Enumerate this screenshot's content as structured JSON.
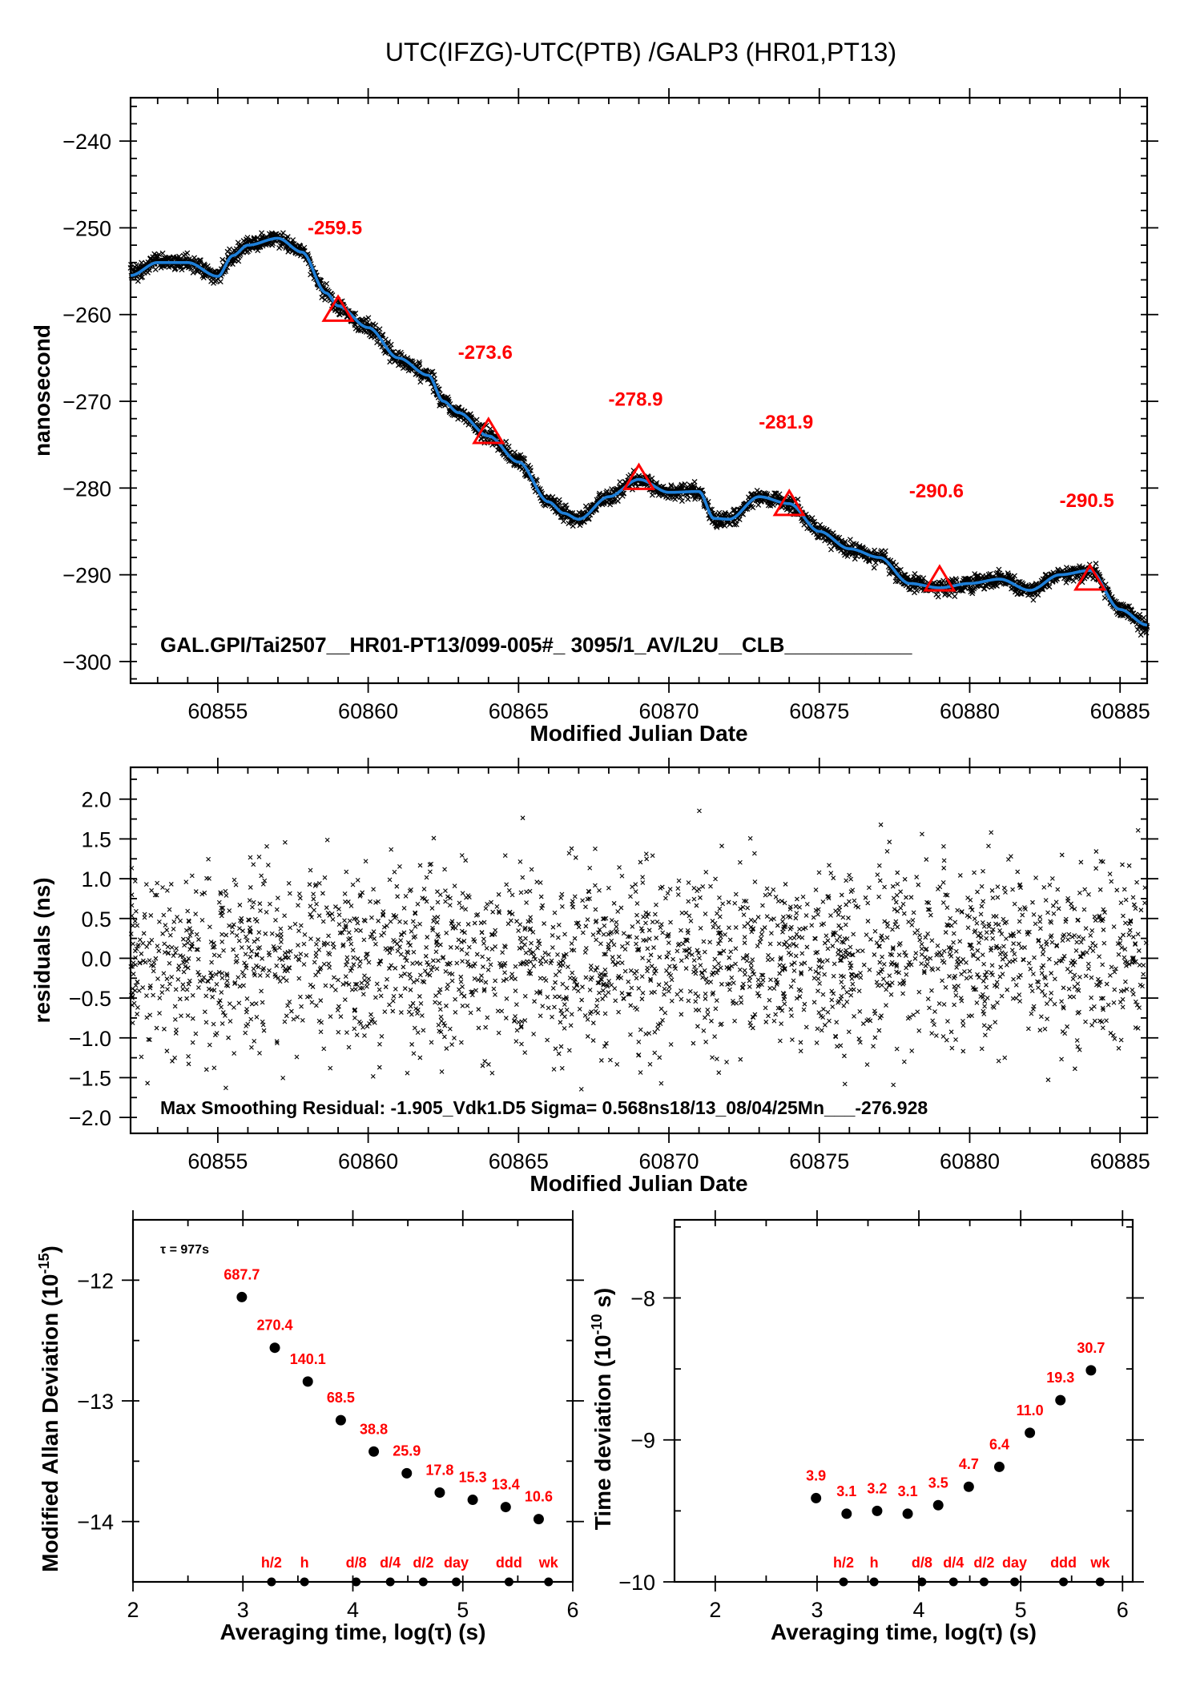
{
  "title": "UTC(IFZG)-UTC(PTB)  /GALP3  (HR01,PT13)",
  "chart_data": [
    {
      "type": "line",
      "id": "main",
      "ylabel": "nanosecond",
      "xlabel": "Modified Julian Date",
      "xlim": [
        60852.1,
        60885.9
      ],
      "ylim": [
        -302.5,
        -235
      ],
      "xticks": [
        60855,
        60860,
        60865,
        60870,
        60875,
        60880,
        60885
      ],
      "xtick_labels": [
        "60855",
        "60860",
        "60865",
        "60870",
        "60875",
        "60880",
        "60885"
      ],
      "yticks": [
        -240,
        -250,
        -260,
        -270,
        -280,
        -290,
        -300
      ],
      "ytick_labels": [
        "−240",
        "−250",
        "−260",
        "−270",
        "−280",
        "−290",
        "−300"
      ],
      "smooth_curve": {
        "x": [
          60852.1,
          60853,
          60854,
          60855,
          60855.5,
          60856,
          60857,
          60857.8,
          60858.6,
          60859,
          60860,
          60861,
          60862,
          60862.5,
          60863,
          60864,
          60865,
          60866,
          60866.5,
          60867,
          60868,
          60869,
          60870,
          60871,
          60871.5,
          60872,
          60873,
          60874,
          60875,
          60876,
          60877,
          60878,
          60879,
          60880,
          60881,
          60882,
          60883,
          60884,
          60885,
          60885.9
        ],
        "y": [
          -255.5,
          -254.0,
          -254.0,
          -255.6,
          -253.2,
          -252.0,
          -251.2,
          -252.8,
          -257.5,
          -259.0,
          -261.5,
          -265.0,
          -267.0,
          -270.0,
          -271.3,
          -274.0,
          -277.0,
          -281.6,
          -282.9,
          -283.6,
          -281.0,
          -279.0,
          -280.5,
          -280.4,
          -283.5,
          -283.6,
          -281.0,
          -281.8,
          -285.0,
          -287.0,
          -288.0,
          -291.0,
          -291.5,
          -291.0,
          -290.5,
          -291.8,
          -290.0,
          -289.5,
          -294.0,
          -295.8
        ]
      },
      "markers": {
        "x": [
          60859,
          60864,
          60869,
          60874,
          60879,
          60884
        ],
        "y": [
          -259.5,
          -273.6,
          -278.9,
          -281.9,
          -290.6,
          -290.5
        ],
        "labels": [
          "-259.5",
          "-273.6",
          "-278.9",
          "-281.9",
          "-290.6",
          "-290.5"
        ]
      },
      "annotation": "GAL.GPI/Tai2507__HR01-PT13/099-005#_  3095/1_AV/L2U__CLB___________",
      "colors": {
        "curve": "#1e7fd8",
        "points": "#000000",
        "markers": "#ff0000"
      }
    },
    {
      "type": "scatter",
      "id": "residuals",
      "ylabel": "residuals (ns)",
      "xlabel": "Modified Julian Date",
      "xlim": [
        60852.1,
        60885.9
      ],
      "ylim": [
        -2.2,
        2.4
      ],
      "xticks": [
        60855,
        60860,
        60865,
        60870,
        60875,
        60880,
        60885
      ],
      "xtick_labels": [
        "60855",
        "60860",
        "60865",
        "60870",
        "60875",
        "60880",
        "60885"
      ],
      "yticks": [
        2.0,
        1.5,
        1.0,
        0.5,
        0.0,
        -0.5,
        -1.0,
        -1.5,
        -2.0
      ],
      "ytick_labels": [
        "2.0",
        "1.5",
        "1.0",
        "0.5",
        "0.0",
        "−0.5",
        "−1.0",
        "−1.5",
        "−2.0"
      ],
      "sigma_ns": 0.568,
      "annotation": "Max Smoothing Residual: -1.905_Vdk1.D5  Sigma= 0.568ns18/13_08/04/25Mn___-276.928"
    },
    {
      "type": "scatter",
      "id": "mdev",
      "ylabel": "Modified Allan Deviation (10",
      "ylabel_sup": "-15",
      "ylabel_end": ")",
      "xlabel": "Averaging time, log(τ) (s)",
      "xlim": [
        2,
        6
      ],
      "ylim": [
        -14.5,
        -11.5
      ],
      "xticks": [
        2,
        3,
        4,
        5,
        6
      ],
      "xtick_labels": [
        "2",
        "3",
        "4",
        "5",
        "6"
      ],
      "yticks": [
        -12,
        -13,
        -14
      ],
      "ytick_labels": [
        "−12",
        "−13",
        "−14"
      ],
      "x": [
        2.99,
        3.29,
        3.59,
        3.89,
        4.19,
        4.49,
        4.79,
        5.09,
        5.39,
        5.69
      ],
      "y": [
        -12.14,
        -12.56,
        -12.84,
        -13.16,
        -13.42,
        -13.6,
        -13.76,
        -13.82,
        -13.88,
        -13.98
      ],
      "value_labels": [
        "687.7",
        "270.4",
        "140.1",
        "68.5",
        "38.8",
        "25.9",
        "17.8",
        "15.3",
        "13.4",
        "10.6"
      ],
      "tau_note": "τ = 977s",
      "scale_markers": {
        "x": [
          3.26,
          3.56,
          4.03,
          4.34,
          4.64,
          4.94,
          5.42,
          5.78
        ],
        "labels": [
          "h/2",
          "h",
          "d/8",
          "d/4",
          "d/2",
          "day",
          "ddd",
          "wk"
        ]
      }
    },
    {
      "type": "scatter",
      "id": "tdev",
      "ylabel": "Time deviation (10",
      "ylabel_sup": "-10",
      "ylabel_end": " s)",
      "xlabel": "Averaging time, log(τ) (s)",
      "xlim": [
        1.6,
        6.1
      ],
      "ylim": [
        -10,
        -7.45
      ],
      "xticks": [
        2,
        3,
        4,
        5,
        6
      ],
      "xtick_labels": [
        "2",
        "3",
        "4",
        "5",
        "6"
      ],
      "yticks": [
        -8,
        -9,
        -10
      ],
      "ytick_labels": [
        "−8",
        "−9",
        "−10"
      ],
      "x": [
        2.99,
        3.29,
        3.59,
        3.89,
        4.19,
        4.49,
        4.79,
        5.09,
        5.39,
        5.69
      ],
      "y": [
        -9.41,
        -9.52,
        -9.5,
        -9.52,
        -9.46,
        -9.33,
        -9.19,
        -8.95,
        -8.72,
        -8.51
      ],
      "value_labels": [
        "3.9",
        "3.1",
        "3.2",
        "3.1",
        "3.5",
        "4.7",
        "6.4",
        "11.0",
        "19.3",
        "30.7"
      ],
      "scale_markers": {
        "x": [
          3.26,
          3.56,
          4.03,
          4.34,
          4.64,
          4.94,
          5.42,
          5.78
        ],
        "labels": [
          "h/2",
          "h",
          "d/8",
          "d/4",
          "d/2",
          "day",
          "ddd",
          "wk"
        ]
      }
    }
  ]
}
